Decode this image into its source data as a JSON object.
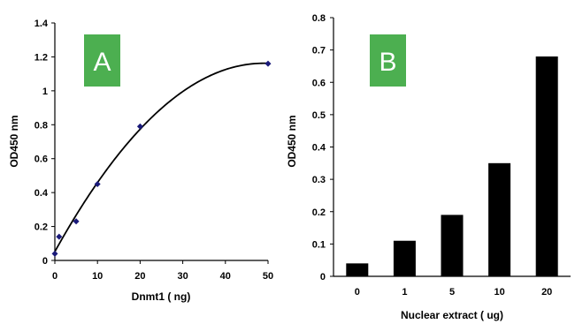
{
  "chart_data": [
    {
      "type": "scatter",
      "panel_label": "A",
      "xlabel": "Dnmt1 ( ng)",
      "ylabel": "OD450 nm",
      "xlim": [
        0,
        50
      ],
      "ylim": [
        0,
        1.4
      ],
      "x_ticks": [
        "0",
        "10",
        "20",
        "30",
        "40",
        "50"
      ],
      "y_ticks": [
        "0",
        "0.2",
        "0.4",
        "0.6",
        "0.8",
        "1",
        "1.2",
        "1.4"
      ],
      "x": [
        0,
        1,
        5,
        10,
        20,
        50
      ],
      "y": [
        0.04,
        0.14,
        0.23,
        0.45,
        0.79,
        1.16
      ],
      "fit_line": true,
      "marker_color": "#1a1a7a",
      "line_color": "#000000",
      "grid": false
    },
    {
      "type": "bar",
      "panel_label": "B",
      "xlabel": "Nuclear extract ( ug)",
      "ylabel": "OD450 nm",
      "categories": [
        "0",
        "1",
        "5",
        "10",
        "20"
      ],
      "values": [
        0.04,
        0.11,
        0.19,
        0.35,
        0.68
      ],
      "ylim": [
        0,
        0.8
      ],
      "y_ticks": [
        "0",
        "0.1",
        "0.2",
        "0.3",
        "0.4",
        "0.5",
        "0.6",
        "0.7",
        "0.8"
      ],
      "bar_color": "#000000",
      "grid": false
    }
  ],
  "label_badge_color": "#4caf50"
}
